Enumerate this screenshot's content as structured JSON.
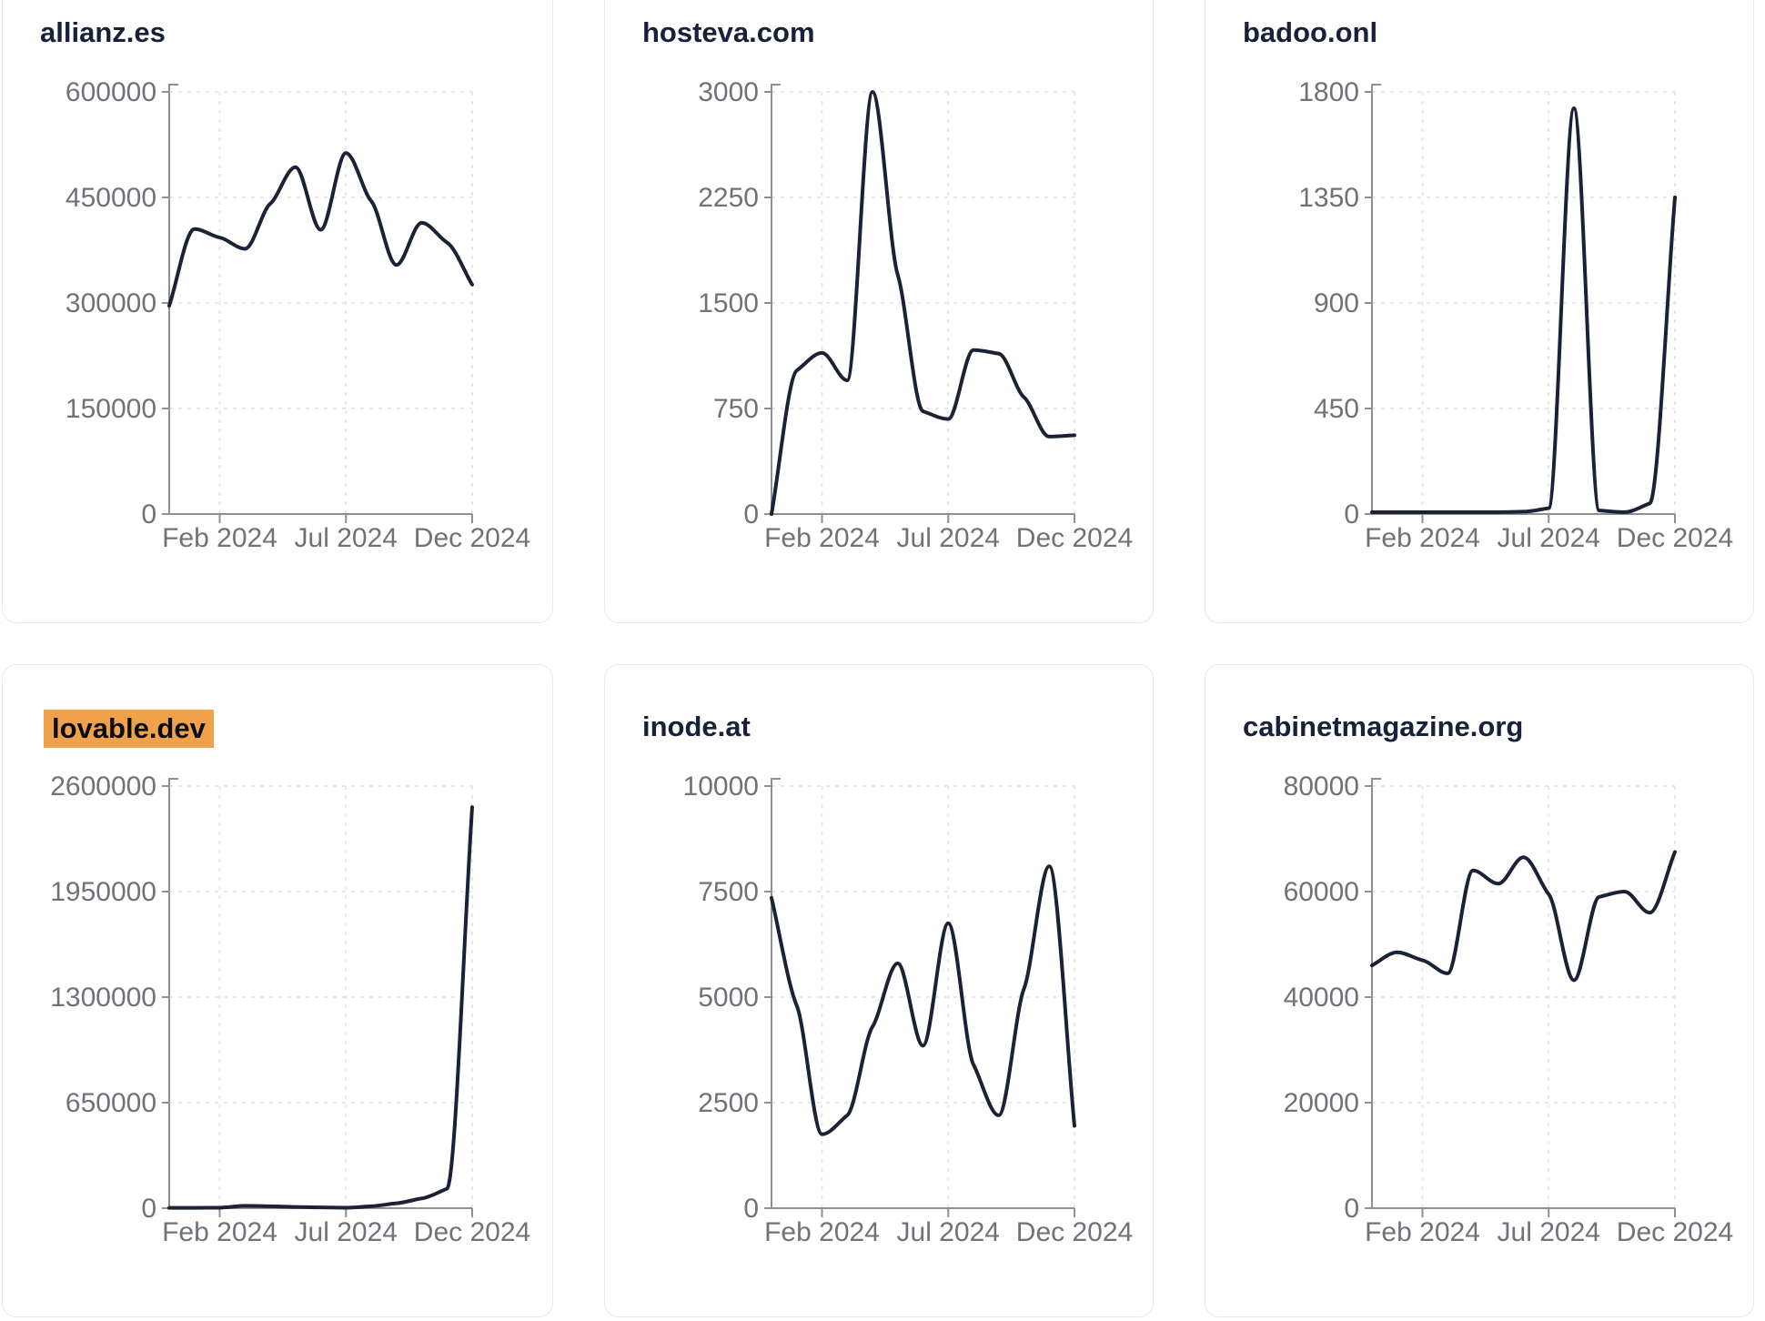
{
  "style": {
    "page_bg": "#ffffff",
    "card_bg": "#ffffff",
    "card_border": "#e4e8f1",
    "title_color": "#17213a",
    "label_color": "#6f7277",
    "axis_color": "#8c8f93",
    "grid_color": "#e8e8ea",
    "line_color": "#1c2236",
    "highlight_bg": "#f0a14c",
    "highlight_text": "#0b0c10"
  },
  "x_axis": {
    "tick_labels": [
      "Feb 2024",
      "Jul 2024",
      "Dec 2024"
    ],
    "tick_month_indices": [
      2,
      7,
      12
    ]
  },
  "chart_data": [
    {
      "type": "line",
      "title": "allianz.es",
      "highlighted": false,
      "x": [
        "Dec 2023",
        "Jan 2024",
        "Feb 2024",
        "Mar 2024",
        "Apr 2024",
        "May 2024",
        "Jun 2024",
        "Jul 2024",
        "Aug 2024",
        "Sep 2024",
        "Oct 2024",
        "Nov 2024",
        "Dec 2024"
      ],
      "values": [
        296000,
        405000,
        393000,
        377000,
        441000,
        493000,
        404000,
        513000,
        445000,
        354000,
        414000,
        386000,
        326000
      ],
      "xlabel": "",
      "ylabel": "",
      "ylim": [
        0,
        600000
      ],
      "y_ticks": [
        0,
        150000,
        300000,
        450000,
        600000
      ],
      "x_tick_labels": [
        "Feb 2024",
        "Jul 2024",
        "Dec 2024"
      ],
      "grid": "dashed",
      "legend": "none"
    },
    {
      "type": "line",
      "title": "hosteva.com",
      "highlighted": false,
      "x": [
        "Dec 2023",
        "Jan 2024",
        "Feb 2024",
        "Mar 2024",
        "Apr 2024",
        "May 2024",
        "Jun 2024",
        "Jul 2024",
        "Aug 2024",
        "Sep 2024",
        "Oct 2024",
        "Nov 2024",
        "Dec 2024"
      ],
      "values": [
        0,
        1020,
        1145,
        950,
        3000,
        1700,
        730,
        675,
        1165,
        1140,
        830,
        550,
        560
      ],
      "xlabel": "",
      "ylabel": "",
      "ylim": [
        0,
        3000
      ],
      "y_ticks": [
        0,
        750,
        1500,
        2250,
        3000
      ],
      "x_tick_labels": [
        "Feb 2024",
        "Jul 2024",
        "Dec 2024"
      ],
      "grid": "dashed",
      "legend": "none"
    },
    {
      "type": "line",
      "title": "badoo.onl",
      "highlighted": false,
      "x": [
        "Dec 2023",
        "Jan 2024",
        "Feb 2024",
        "Mar 2024",
        "Apr 2024",
        "May 2024",
        "Jun 2024",
        "Jul 2024",
        "Aug 2024",
        "Sep 2024",
        "Oct 2024",
        "Nov 2024",
        "Dec 2024"
      ],
      "values": [
        8,
        8,
        8,
        8,
        8,
        8,
        10,
        25,
        1730,
        15,
        8,
        45,
        1350
      ],
      "xlabel": "",
      "ylabel": "",
      "ylim": [
        0,
        1800
      ],
      "y_ticks": [
        0,
        450,
        900,
        1350,
        1800
      ],
      "x_tick_labels": [
        "Feb 2024",
        "Jul 2024",
        "Dec 2024"
      ],
      "grid": "dashed",
      "legend": "none"
    },
    {
      "type": "line",
      "title": "lovable.dev",
      "highlighted": true,
      "x": [
        "Dec 2023",
        "Jan 2024",
        "Feb 2024",
        "Mar 2024",
        "Apr 2024",
        "May 2024",
        "Jun 2024",
        "Jul 2024",
        "Aug 2024",
        "Sep 2024",
        "Oct 2024",
        "Nov 2024",
        "Dec 2024"
      ],
      "values": [
        2000,
        2000,
        3000,
        15000,
        12000,
        8000,
        5000,
        3000,
        12000,
        30000,
        60000,
        120000,
        2470000
      ],
      "xlabel": "",
      "ylabel": "",
      "ylim": [
        0,
        2600000
      ],
      "y_ticks": [
        0,
        650000,
        1300000,
        1950000,
        2600000
      ],
      "x_tick_labels": [
        "Feb 2024",
        "Jul 2024",
        "Dec 2024"
      ],
      "grid": "dashed",
      "legend": "none"
    },
    {
      "type": "line",
      "title": "inode.at",
      "highlighted": false,
      "x": [
        "Dec 2023",
        "Jan 2024",
        "Feb 2024",
        "Mar 2024",
        "Apr 2024",
        "May 2024",
        "Jun 2024",
        "Jul 2024",
        "Aug 2024",
        "Sep 2024",
        "Oct 2024",
        "Nov 2024",
        "Dec 2024"
      ],
      "values": [
        7350,
        4800,
        1750,
        2200,
        4300,
        5800,
        3850,
        6750,
        3400,
        2200,
        5200,
        8100,
        1950
      ],
      "xlabel": "",
      "ylabel": "",
      "ylim": [
        0,
        10000
      ],
      "y_ticks": [
        0,
        2500,
        5000,
        7500,
        10000
      ],
      "x_tick_labels": [
        "Feb 2024",
        "Jul 2024",
        "Dec 2024"
      ],
      "grid": "dashed",
      "legend": "none"
    },
    {
      "type": "line",
      "title": "cabinetmagazine.org",
      "highlighted": false,
      "x": [
        "Dec 2023",
        "Jan 2024",
        "Feb 2024",
        "Mar 2024",
        "Apr 2024",
        "May 2024",
        "Jun 2024",
        "Jul 2024",
        "Aug 2024",
        "Sep 2024",
        "Oct 2024",
        "Nov 2024",
        "Dec 2024"
      ],
      "values": [
        46000,
        48500,
        47000,
        44500,
        64000,
        61500,
        66500,
        59500,
        43200,
        59000,
        60000,
        56000,
        67500
      ],
      "xlabel": "",
      "ylabel": "",
      "ylim": [
        0,
        80000
      ],
      "y_ticks": [
        0,
        20000,
        40000,
        60000,
        80000
      ],
      "x_tick_labels": [
        "Feb 2024",
        "Jul 2024",
        "Dec 2024"
      ],
      "grid": "dashed",
      "legend": "none"
    }
  ]
}
